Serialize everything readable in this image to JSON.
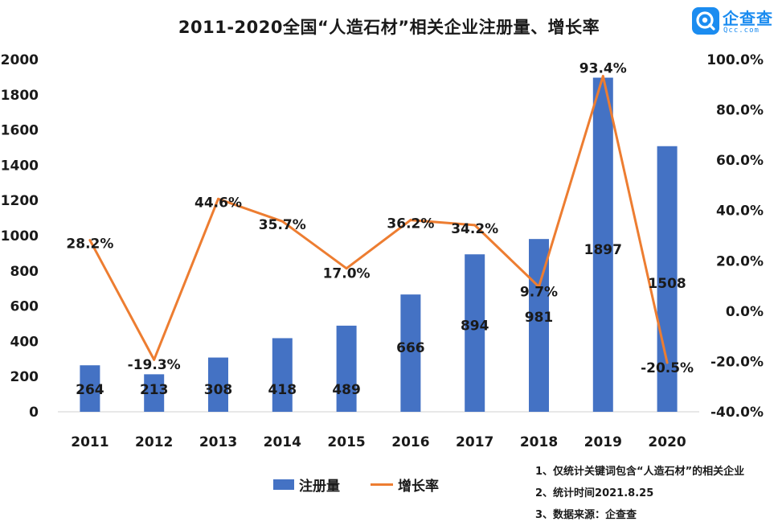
{
  "header": {
    "title": "2011-2020全国“人造石材”相关企业注册量、增长率",
    "logo_text": "企查查",
    "logo_sub": "Qcc.com"
  },
  "chart_data": {
    "type": "bar+line",
    "title": "2011-2020全国“人造石材”相关企业注册量、增长率",
    "categories": [
      "2011",
      "2012",
      "2013",
      "2014",
      "2015",
      "2016",
      "2017",
      "2018",
      "2019",
      "2020"
    ],
    "series": [
      {
        "name": "注册量",
        "type": "bar",
        "axis": "left",
        "color": "#4472c4",
        "values": [
          264,
          213,
          308,
          418,
          489,
          666,
          894,
          981,
          1897,
          1508
        ],
        "labels": [
          "264",
          "213",
          "308",
          "418",
          "489",
          "666",
          "894",
          "981",
          "1897",
          "1508"
        ]
      },
      {
        "name": "增长率",
        "type": "line",
        "axis": "right",
        "color": "#ed7d31",
        "values": [
          28.2,
          -19.3,
          44.6,
          35.7,
          17.0,
          36.2,
          34.2,
          9.7,
          93.4,
          -20.5
        ],
        "labels": [
          "28.2%",
          "-19.3%",
          "44.6%",
          "35.7%",
          "17.0%",
          "36.2%",
          "34.2%",
          "9.7%",
          "93.4%",
          "-20.5%"
        ]
      }
    ],
    "y_left": {
      "min": 0,
      "max": 2000,
      "ticks": [
        "0",
        "200",
        "400",
        "600",
        "800",
        "1000",
        "1200",
        "1400",
        "1600",
        "1800",
        "2000"
      ]
    },
    "y_right": {
      "min": -40,
      "max": 100,
      "ticks": [
        "-40.0%",
        "-20.0%",
        "0.0%",
        "20.0%",
        "40.0%",
        "60.0%",
        "80.0%",
        "100.0%"
      ]
    },
    "grid": false,
    "legend_position": "bottom"
  },
  "legend": {
    "bar_label": "注册量",
    "line_label": "增长率"
  },
  "notes": {
    "note1": "1、仅统计关键词包含“人造石材”的相关企业",
    "note2": "2、统计时间2021.8.25",
    "note3": "3、数据来源：企查查"
  }
}
